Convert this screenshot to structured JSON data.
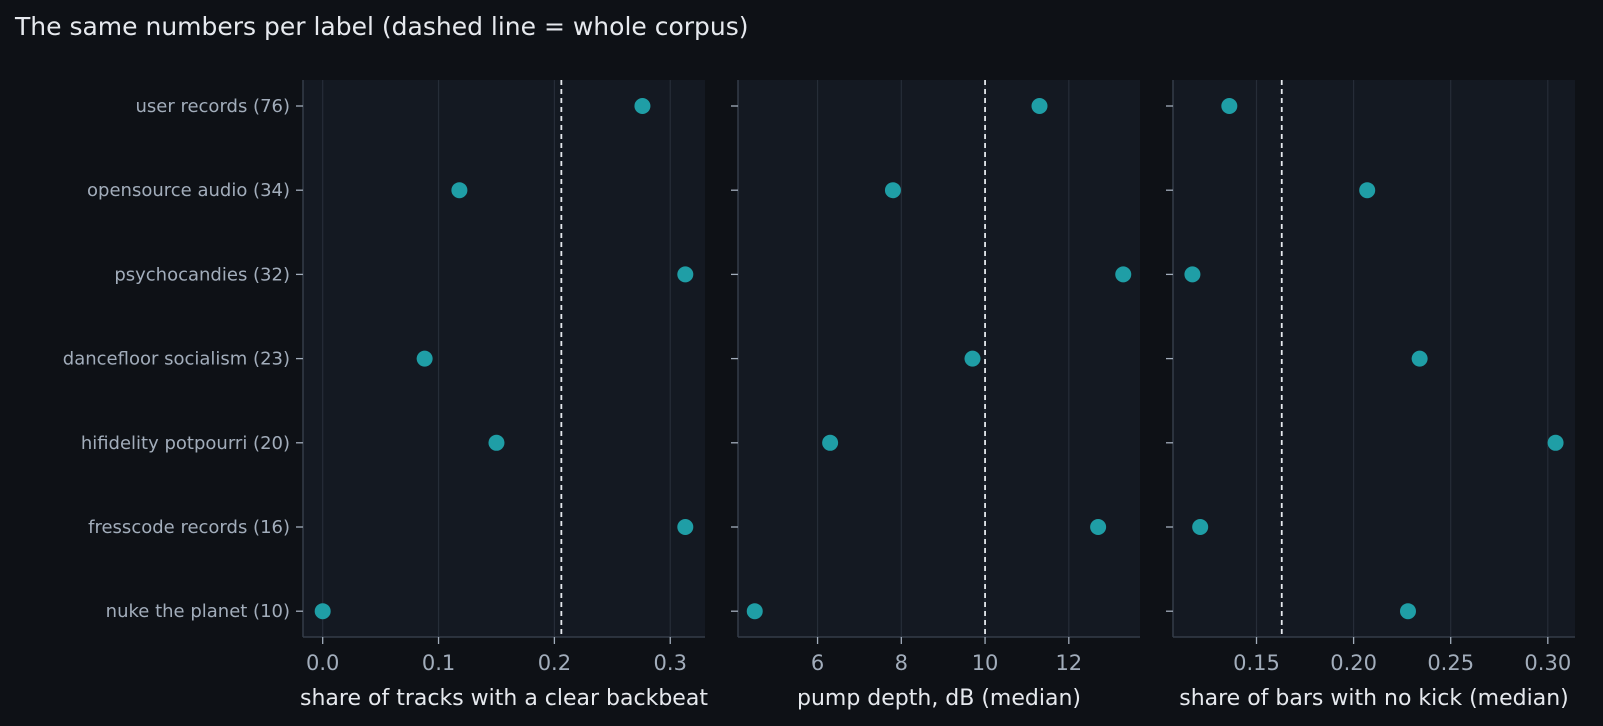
{
  "title": "The same numbers per label (dashed line = whole corpus)",
  "colors": {
    "background": "#0e1116",
    "panel": "#141922",
    "grid": "#262d38",
    "dot": "#1f9ea6",
    "reference_line": "#e6e9ee",
    "text": "#e6e9ee",
    "muted_text": "#a2adbb"
  },
  "chart_data": {
    "type": "scatter",
    "style": "dot-plot, three panels sharing the category axis",
    "categories": [
      "user records (76)",
      "opensource audio (34)",
      "psychocandies (32)",
      "dancefloor socialism (23)",
      "hifidelity potpourri (20)",
      "fresscode records (16)",
      "nuke the planet (10)"
    ],
    "panels": [
      {
        "xlabel": "share of tracks with a clear backbeat",
        "xlim": [
          -0.017,
          0.33
        ],
        "xticks": [
          0.0,
          0.1,
          0.2,
          0.3
        ],
        "xtick_labels": [
          "0.0",
          "0.1",
          "0.2",
          "0.3"
        ],
        "values": [
          0.276,
          0.118,
          0.313,
          0.088,
          0.15,
          0.313,
          0.0
        ],
        "reference": 0.206,
        "grid": true
      },
      {
        "xlabel": "pump depth, dB (median)",
        "xlim": [
          4.1,
          13.7
        ],
        "xticks": [
          6,
          8,
          10,
          12
        ],
        "xtick_labels": [
          "6",
          "8",
          "10",
          "12"
        ],
        "values": [
          11.3,
          7.8,
          13.3,
          9.7,
          6.3,
          12.7,
          4.5
        ],
        "reference": 10.0,
        "grid": true
      },
      {
        "xlabel": "share of bars with no kick (median)",
        "xlim": [
          0.107,
          0.314
        ],
        "xticks": [
          0.15,
          0.2,
          0.25,
          0.3
        ],
        "xtick_labels": [
          "0.15",
          "0.20",
          "0.25",
          "0.30"
        ],
        "values": [
          0.136,
          0.207,
          0.117,
          0.234,
          0.304,
          0.121,
          0.228
        ],
        "reference": 0.163,
        "grid": true
      }
    ]
  }
}
